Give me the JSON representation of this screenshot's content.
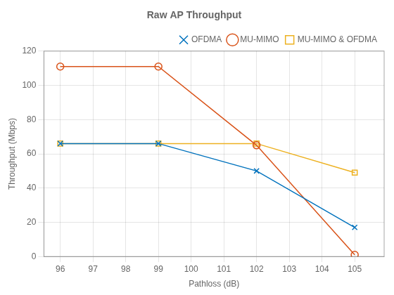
{
  "chart_data": {
    "type": "line",
    "title": "Raw AP Throughput",
    "x_label": "Pathloss (dB)",
    "y_label": "Throughput (Mbps)",
    "x": [
      96,
      99,
      102,
      105
    ],
    "series": [
      {
        "name": "OFDMA",
        "color": "#0072BD",
        "marker": "x",
        "line_style": "solid",
        "values": [
          66,
          66,
          50,
          17
        ]
      },
      {
        "name": "MU-MIMO",
        "color": "#D95319",
        "marker": "circle",
        "line_style": "solid",
        "values": [
          111,
          111,
          65,
          1
        ]
      },
      {
        "name": "MU-MIMO & OFDMA",
        "color": "#EDB120",
        "marker": "square",
        "line_style": "solid",
        "values": [
          66,
          66,
          66,
          49
        ]
      }
    ],
    "xlim": [
      95.5,
      105.9
    ],
    "xticks": [
      96,
      97,
      98,
      99,
      100,
      101,
      102,
      103,
      104,
      105
    ],
    "ylim": [
      0,
      120
    ],
    "yticks": [
      0,
      20,
      40,
      60,
      80,
      100,
      120
    ],
    "grid": true,
    "legend": "upper right"
  }
}
